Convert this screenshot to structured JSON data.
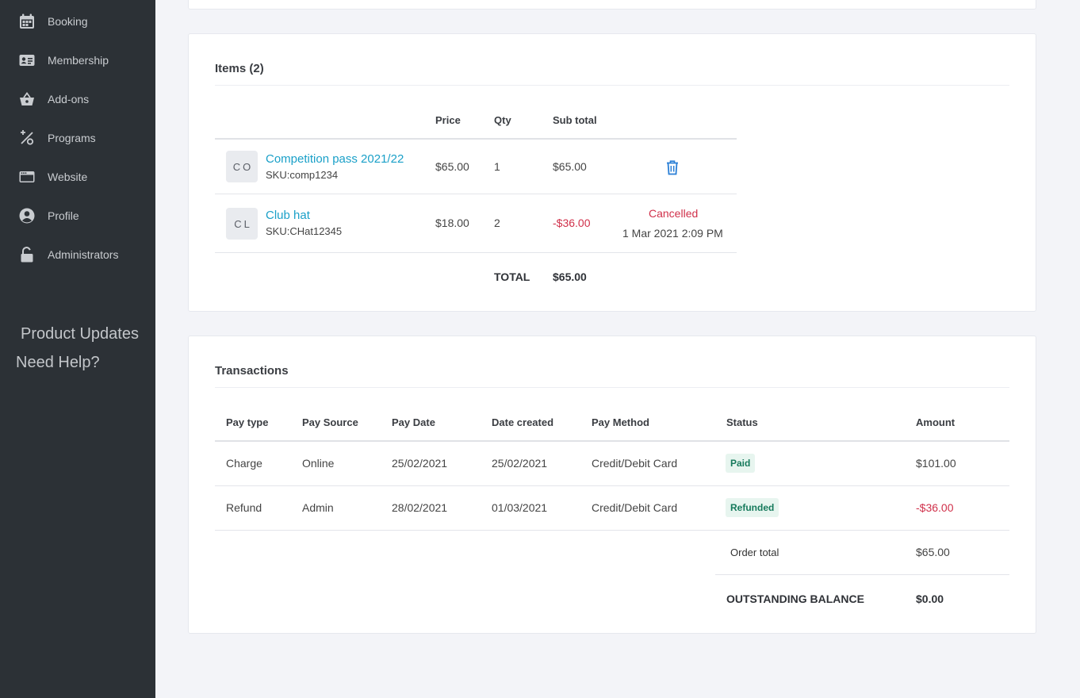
{
  "sidebar": {
    "items": [
      {
        "label": "Booking",
        "icon": "calendar-icon"
      },
      {
        "label": "Membership",
        "icon": "id-card-icon"
      },
      {
        "label": "Add-ons",
        "icon": "basket-icon"
      },
      {
        "label": "Programs",
        "icon": "percent-icon"
      },
      {
        "label": "Website",
        "icon": "browser-icon"
      },
      {
        "label": "Profile",
        "icon": "user-circle-icon"
      },
      {
        "label": "Administrators",
        "icon": "unlock-icon"
      }
    ],
    "product_updates": "Product Updates",
    "need_help": "Need Help?"
  },
  "items_card": {
    "title": "Items (2)",
    "headers": {
      "price": "Price",
      "qty": "Qty",
      "subtotal": "Sub total"
    },
    "rows": [
      {
        "thumb": "CO",
        "name": "Competition pass 2021/22",
        "sku": "SKU:comp1234",
        "price": "$65.00",
        "qty": "1",
        "subtotal": "$65.00"
      },
      {
        "thumb": "CL",
        "name": "Club hat",
        "sku": "SKU:CHat12345",
        "price": "$18.00",
        "qty": "2",
        "subtotal": "-$36.00",
        "status": "Cancelled",
        "status_date": "1 Mar 2021 2:09 PM"
      }
    ],
    "total_label": "TOTAL",
    "total_value": "$65.00"
  },
  "transactions_card": {
    "title": "Transactions",
    "headers": {
      "pay_type": "Pay type",
      "pay_source": "Pay Source",
      "pay_date": "Pay Date",
      "date_created": "Date created",
      "pay_method": "Pay Method",
      "status": "Status",
      "amount": "Amount"
    },
    "rows": [
      {
        "pay_type": "Charge",
        "pay_source": "Online",
        "pay_date": "25/02/2021",
        "date_created": "25/02/2021",
        "pay_method": "Credit/Debit Card",
        "status": "Paid",
        "amount": "$101.00"
      },
      {
        "pay_type": "Refund",
        "pay_source": "Admin",
        "pay_date": "28/02/2021",
        "date_created": "01/03/2021",
        "pay_method": "Credit/Debit Card",
        "status": "Refunded",
        "amount": "-$36.00"
      }
    ],
    "order_total_label": "Order total",
    "order_total_value": "$65.00",
    "outstanding_label": "OUTSTANDING BALANCE",
    "outstanding_value": "$0.00"
  },
  "colors": {
    "sidebar_bg": "#2c3136",
    "link": "#1aa0c8",
    "negative": "#d0304a",
    "badge_text": "#167a5c",
    "badge_bg": "#e7f5ef",
    "trash": "#2a7fd6"
  }
}
